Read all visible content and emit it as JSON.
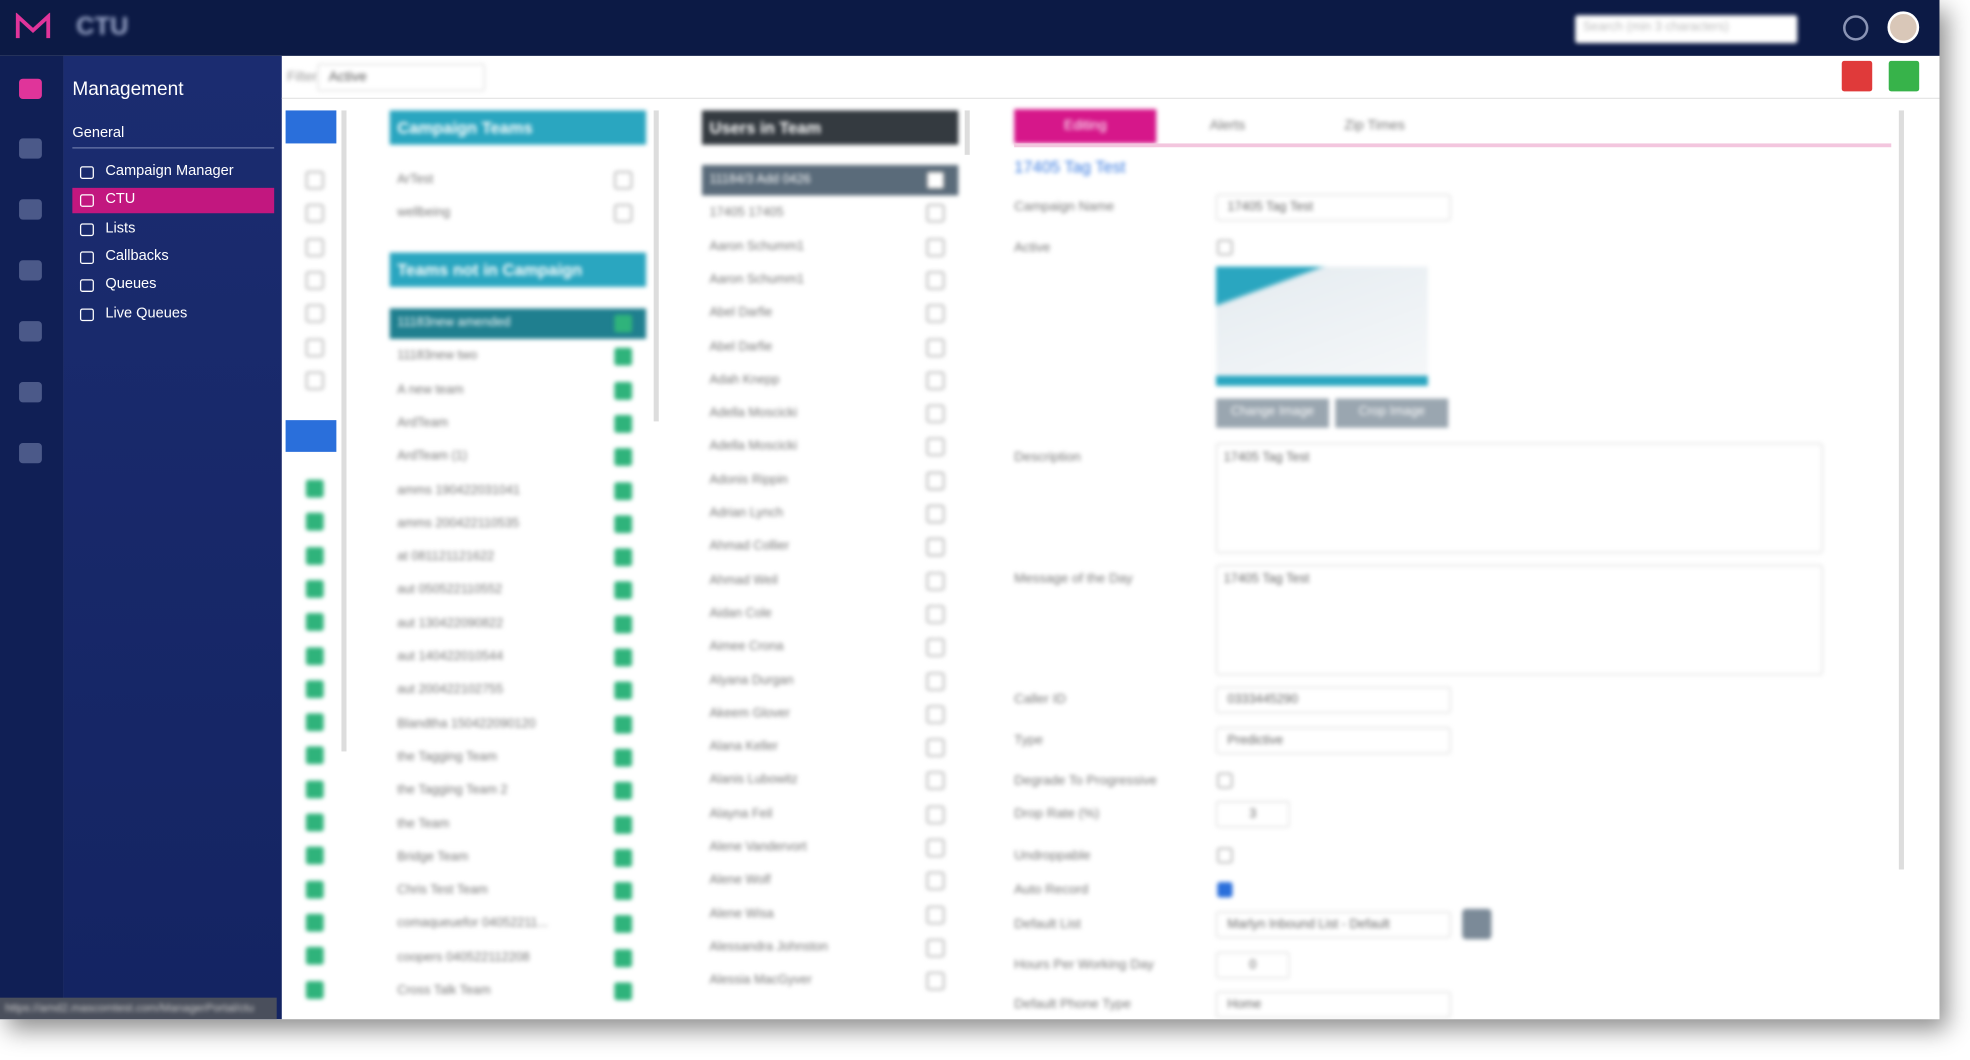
{
  "header": {
    "brand": "CTU",
    "search_placeholder": "Search (min 3 characters)"
  },
  "sidebar": {
    "title": "Management",
    "section": "General",
    "items": [
      "Campaign Manager",
      "CTU",
      "Lists",
      "Callbacks",
      "Queues",
      "Live Queues"
    ],
    "active": "CTU"
  },
  "toolbar": {
    "filter_label": "Filter:",
    "filter_value": "Active"
  },
  "campaign_teams": {
    "heading": "Campaign Teams",
    "items": [
      "ArTest",
      "wellbeing"
    ]
  },
  "teams_not_in_campaign": {
    "heading": "Teams not in Campaign",
    "items": [
      "11183new amended",
      "11183new two",
      "A new team",
      "ArdTeam",
      "ArdTeam (1)",
      "amms 190422031041",
      "amms 200422110535",
      "at 081121121622",
      "aut 050522110552",
      "aut 130422090822",
      "aut 140422010544",
      "aut 200422102755",
      "Blandtha 150422090120",
      "the Tagging Team",
      "the Tagging Team 2",
      "the Team",
      "Bridge Team",
      "Chris Test Team",
      "comaqueuefor 04052211...",
      "coopers 040522112208",
      "Cross Talk Team"
    ]
  },
  "users_in_team": {
    "heading": "Users in Team",
    "items": [
      "11184/3 Add 0426",
      "17405 17405",
      "Aaron Schumm1",
      "Aaron Schumm1",
      "Abel Darfie",
      "Abel Darfie",
      "Adah Knepp",
      "Adella Moscicki",
      "Adella Moscicki",
      "Adonis Rippin",
      "Adrian Lynch",
      "Ahmad Collier",
      "Ahmad Weil",
      "Aidan Cole",
      "Aimee Crona",
      "Alyana Durgan",
      "Akeem Glover",
      "Alana Keller",
      "Alanis Lubowitz",
      "Alayna Feil",
      "Alene Vandervort",
      "Alene Wolf",
      "Alene Wisa",
      "Alessandra Johnston",
      "Alessia MacGyver"
    ]
  },
  "tabs": [
    "Editing",
    "Alerts",
    "Zip Times"
  ],
  "form": {
    "title": "17405 Tag Test",
    "fields": [
      {
        "label": "Campaign Name",
        "value": "17405 Tag Test"
      },
      {
        "label": "Active"
      },
      {
        "label": "Description",
        "value": "17405 Tag Test"
      },
      {
        "label": "Message of the Day",
        "value": "17405 Tag Test"
      },
      {
        "label": "Caller ID",
        "value": "0333445290"
      },
      {
        "label": "Type",
        "value": "Predictive"
      },
      {
        "label": "Degrade To Progressive"
      },
      {
        "label": "Drop Rate (%)",
        "value": "3"
      },
      {
        "label": "Undroppable"
      },
      {
        "label": "Auto Record"
      },
      {
        "label": "Default List",
        "value": "Marlyn Inbound List - Default"
      },
      {
        "label": "Hours Per Working Day",
        "value": "0"
      },
      {
        "label": "Default Phone Type",
        "value": "Home"
      }
    ],
    "buttons": [
      "Change Image",
      "Crop Image"
    ]
  },
  "status_url": "https://amd2.mascomtest.com/ManagerPortal/ctu"
}
